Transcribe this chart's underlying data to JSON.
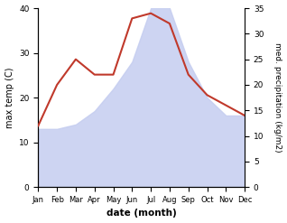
{
  "months": [
    "Jan",
    "Feb",
    "Mar",
    "Apr",
    "May",
    "Jun",
    "Jul",
    "Aug",
    "Sep",
    "Oct",
    "Nov",
    "Dec"
  ],
  "temperature": [
    13,
    13,
    14,
    17,
    22,
    28,
    40,
    40,
    28,
    20,
    16,
    16
  ],
  "precipitation": [
    12,
    20,
    25,
    22,
    22,
    33,
    34,
    32,
    22,
    18,
    16,
    14
  ],
  "temp_ylim": [
    0,
    40
  ],
  "precip_ylim": [
    0,
    35
  ],
  "temp_fill_color": "#c5cdf0",
  "precip_color": "#c0392b",
  "xlabel": "date (month)",
  "ylabel_left": "max temp (C)",
  "ylabel_right": "med. precipitation (kg/m2)",
  "bg_color": "#ffffff",
  "temp_yticks": [
    0,
    10,
    20,
    30,
    40
  ],
  "precip_yticks": [
    0,
    5,
    10,
    15,
    20,
    25,
    30,
    35
  ]
}
